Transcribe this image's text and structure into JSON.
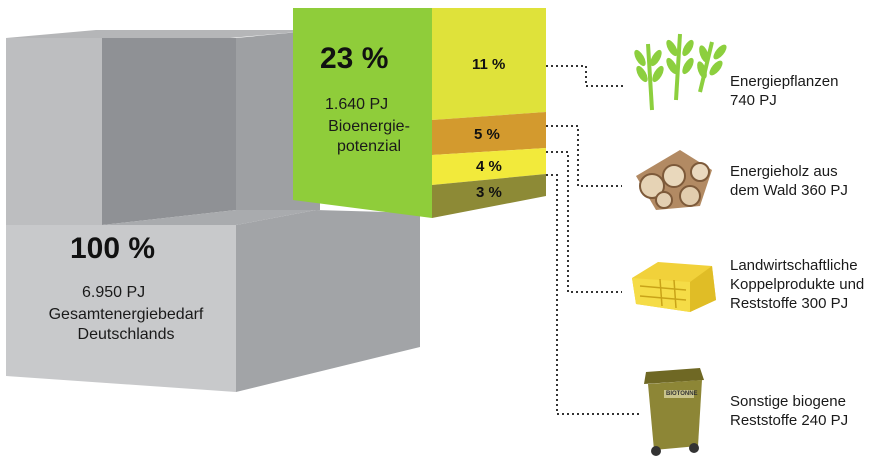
{
  "total": {
    "percent": "100 %",
    "amount": "6.950 PJ",
    "label_line1": "Gesamtenergiebedarf",
    "label_line2": "Deutschlands"
  },
  "potential": {
    "percent": "23 %",
    "amount": "1.640 PJ",
    "label_line1": "Bioenergie-",
    "label_line2": "potenzial"
  },
  "segments": [
    {
      "percent": "11 %",
      "color": "#dfe23a"
    },
    {
      "percent": "5 %",
      "color": "#d39a2e"
    },
    {
      "percent": "4 %",
      "color": "#f2ea3b"
    },
    {
      "percent": "3 %",
      "color": "#8d8a36"
    }
  ],
  "sources": [
    {
      "line1": "Energiepflanzen",
      "line2": "740 PJ",
      "icon": "plants-icon"
    },
    {
      "line1": "Energieholz aus",
      "line2": "dem Wald 360 PJ",
      "icon": "firewood-icon"
    },
    {
      "line1": "Landwirtschaftliche",
      "line2": "Koppelprodukte und",
      "line3": "Reststoffe 300 PJ",
      "icon": "straw-bale-icon"
    },
    {
      "line1": "Sonstige biogene",
      "line2": "Reststoffe 240 PJ",
      "icon": "waste-bin-icon"
    }
  ],
  "bin_label": "BIOTONNE",
  "colors": {
    "gray_light": "#c4c5c7",
    "gray_mid": "#a4a6a9",
    "gray_dark": "#8d8f93",
    "green": "#8fcd3a",
    "plant_green": "#8ccf3e"
  }
}
